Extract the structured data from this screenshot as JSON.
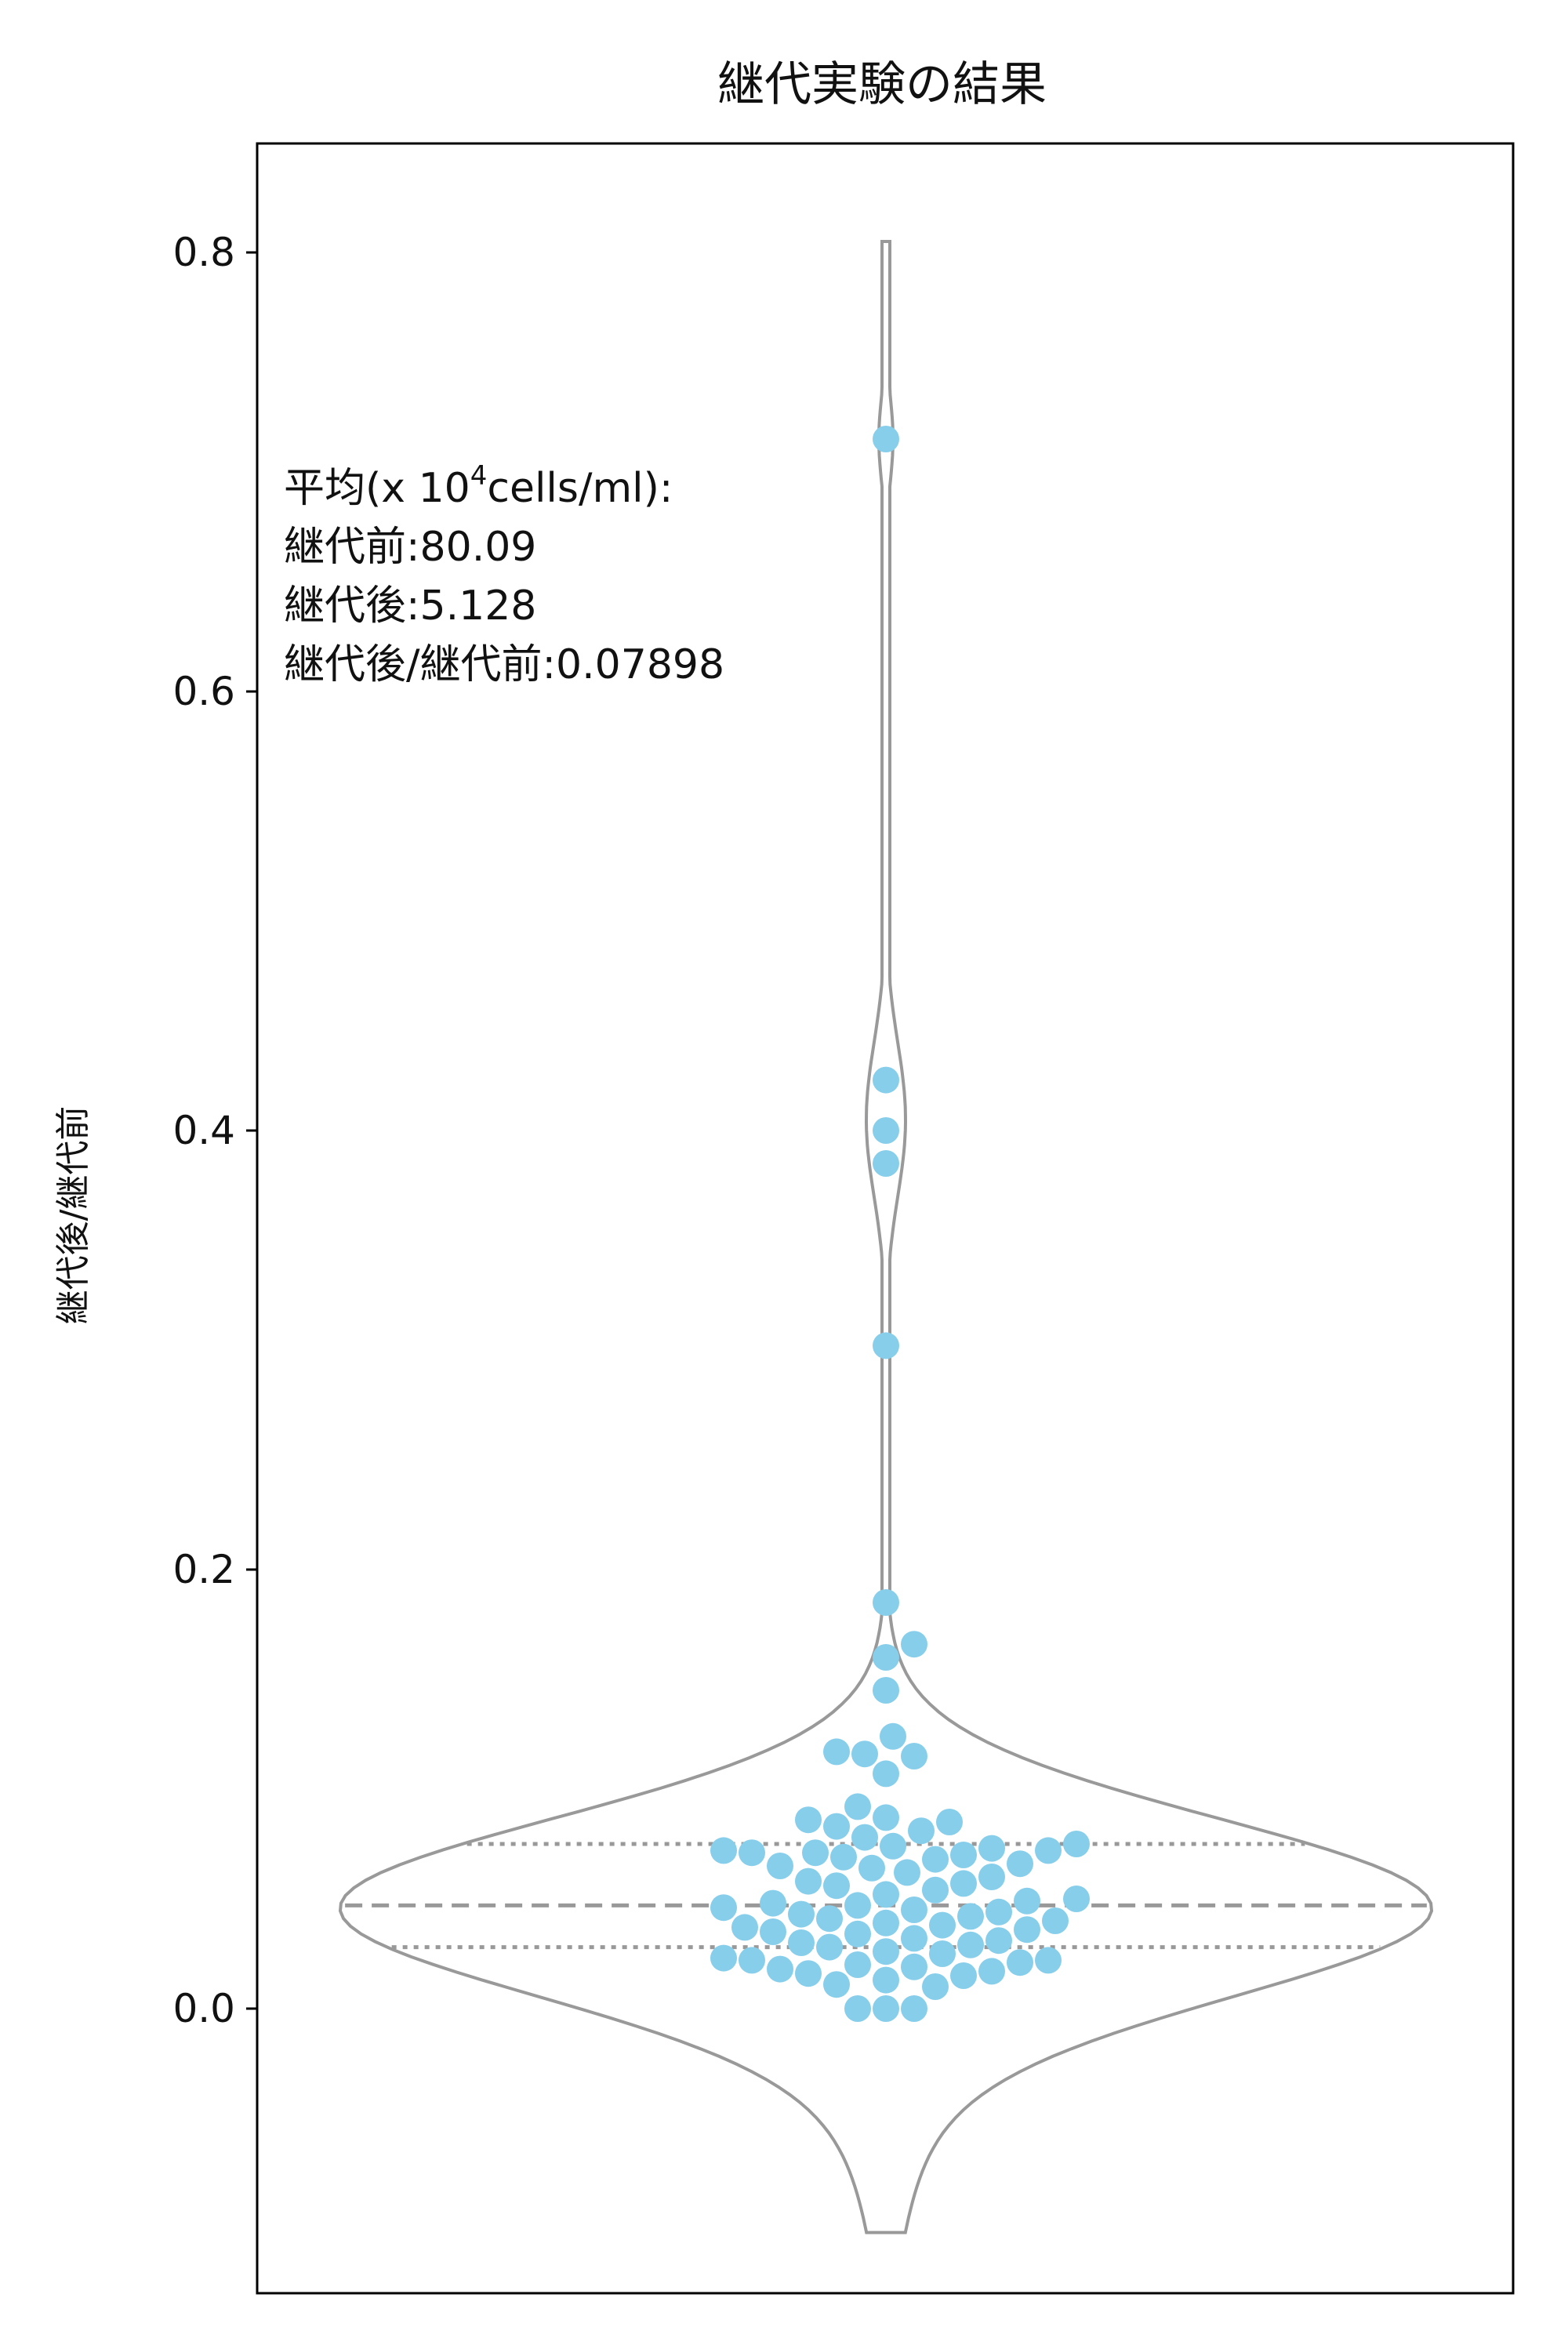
{
  "chart_data": {
    "type": "violin-swarm",
    "title": "継代実験の結果",
    "xlabel": "",
    "ylabel": "継代後/継代前",
    "ylim": [
      -0.13,
      0.85
    ],
    "yticks": [
      0.0,
      0.2,
      0.4,
      0.6,
      0.8
    ],
    "ytick_labels": [
      "0.0",
      "0.2",
      "0.4",
      "0.6",
      "0.8"
    ],
    "grid": false,
    "legend": "none",
    "colors": {
      "points": "#87ceeb",
      "violin": "#999999",
      "axes": "#000000"
    },
    "violin": {
      "median": 0.047,
      "q1": 0.028,
      "q3": 0.075,
      "y_min": -0.102,
      "y_max": 0.805
    },
    "points": [
      0.0,
      0.0,
      0.0,
      0.01,
      0.011,
      0.013,
      0.015,
      0.016,
      0.017,
      0.018,
      0.019,
      0.02,
      0.021,
      0.022,
      0.022,
      0.023,
      0.025,
      0.026,
      0.028,
      0.029,
      0.03,
      0.031,
      0.032,
      0.034,
      0.035,
      0.036,
      0.037,
      0.038,
      0.039,
      0.04,
      0.041,
      0.042,
      0.043,
      0.044,
      0.045,
      0.046,
      0.047,
      0.048,
      0.049,
      0.05,
      0.052,
      0.054,
      0.056,
      0.057,
      0.058,
      0.06,
      0.062,
      0.064,
      0.065,
      0.066,
      0.068,
      0.069,
      0.07,
      0.071,
      0.071,
      0.072,
      0.072,
      0.073,
      0.074,
      0.075,
      0.078,
      0.081,
      0.083,
      0.085,
      0.086,
      0.087,
      0.092,
      0.107,
      0.115,
      0.116,
      0.117,
      0.124,
      0.145,
      0.16,
      0.166,
      0.185,
      0.302,
      0.385,
      0.4,
      0.423,
      0.715
    ],
    "annotation": {
      "header_prefix": "平均(x 10",
      "header_exponent": "4",
      "header_suffix": "cells/ml):",
      "line2": "継代前:80.09",
      "line3": "継代後:5.128",
      "line4": "継代後/継代前:0.07898"
    }
  }
}
